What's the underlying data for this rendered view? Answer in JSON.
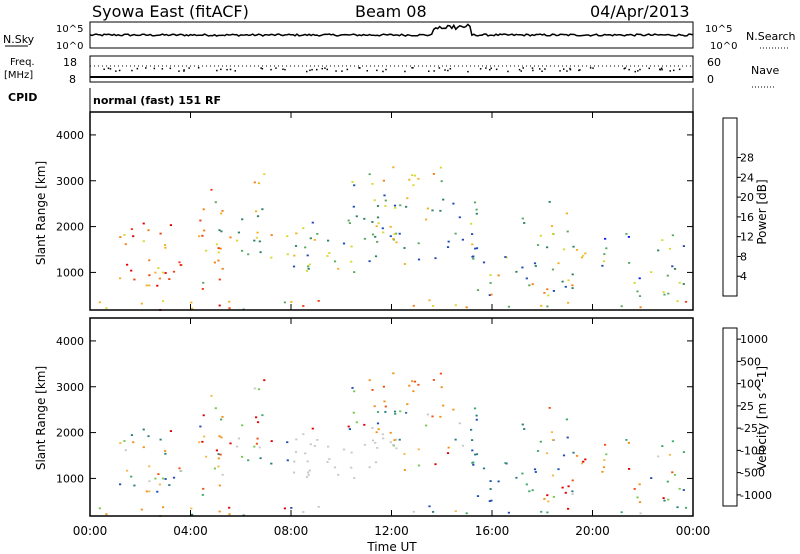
{
  "header": {
    "station": "Syowa East (fitACF)",
    "beam": "Beam 08",
    "date": "04/Apr/2013"
  },
  "top_panels": {
    "nsky_label": "N.Sky",
    "nsky_top": "10^5",
    "nsky_bottom": "10^0",
    "nsearch_label": "N.Search",
    "freq_label_1": "Freq.",
    "freq_label_2": "[MHz]",
    "freq_top": "18",
    "freq_bottom": "8",
    "nave_label": "Nave",
    "nave_top": "60",
    "nave_bottom": "0",
    "cpid_label": "CPID",
    "cpid_text": "normal (fast) 151 RF"
  },
  "colors": {
    "power_scale": [
      "#0a1ef0",
      "#1e4ab4",
      "#2e8060",
      "#5aa860",
      "#d8d830",
      "#f4b020",
      "#f48014",
      "#f03c14",
      "#e00000"
    ],
    "velocity_scale": [
      "#e00000",
      "#f05010",
      "#f49018",
      "#f4b84c",
      "#c8c8c8",
      "#76c850",
      "#3ea86a",
      "#2a7c80",
      "#1e4cb4"
    ]
  },
  "chart_data": [
    {
      "type": "heatmap",
      "title": "",
      "xlabel": "",
      "ylabel": "Slant Range [km]",
      "colorbar_label": "Power [dB]",
      "colorbar_ticks": [
        "4",
        "8",
        "12",
        "16",
        "20",
        "24",
        "28"
      ],
      "xlim": [
        "00:00",
        "24:00"
      ],
      "ylim": [
        180,
        4500
      ],
      "y_ticks": [
        "1000",
        "2000",
        "3000",
        "4000"
      ],
      "x_ticks": [
        "00:00",
        "04:00",
        "08:00",
        "12:00",
        "16:00",
        "20:00",
        "00:00"
      ]
    },
    {
      "type": "heatmap",
      "title": "",
      "xlabel": "Time UT",
      "ylabel": "Slant Range [km]",
      "colorbar_label": "Velocity [m s^-1]",
      "colorbar_ticks": [
        "1000",
        "500",
        "100",
        "25",
        "-25",
        "-100",
        "-500",
        "-1000"
      ],
      "xlim": [
        "00:00",
        "24:00"
      ],
      "ylim": [
        180,
        4500
      ],
      "y_ticks": [
        "1000",
        "2000",
        "3000",
        "4000"
      ],
      "x_ticks": [
        "00:00",
        "04:00",
        "08:00",
        "12:00",
        "16:00",
        "20:00",
        "00:00"
      ]
    }
  ]
}
